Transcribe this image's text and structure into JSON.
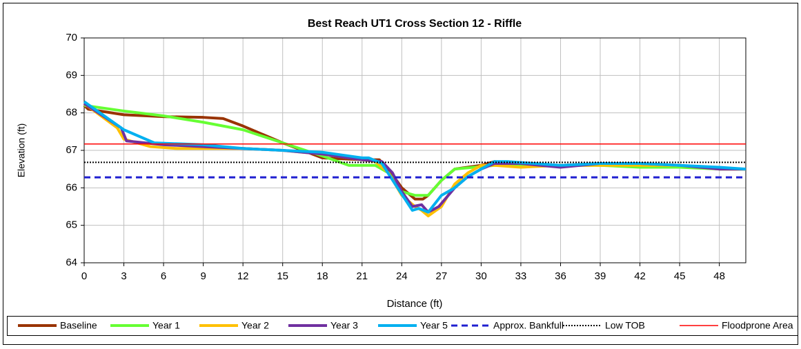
{
  "chart_data": {
    "type": "line",
    "title": "Best Reach UT1 Cross Section 12 - Riffle",
    "x_label": "Distance (ft)",
    "y_label": "Elevation (ft)",
    "xlim": [
      0,
      50
    ],
    "xticks": [
      0,
      3,
      6,
      9,
      12,
      15,
      18,
      21,
      24,
      27,
      30,
      33,
      36,
      39,
      42,
      45,
      48
    ],
    "ylim": [
      64,
      70
    ],
    "yticks": [
      64,
      65,
      66,
      67,
      68,
      69,
      70
    ],
    "grid": true,
    "legend": "bottom",
    "series": [
      {
        "name": "Baseline",
        "color": "#993300",
        "style": "solid",
        "x": [
          0,
          0.3,
          3,
          6,
          9,
          10.5,
          12,
          15,
          18,
          21,
          22.3,
          23,
          24,
          25,
          25.6,
          26,
          27,
          28,
          30,
          31,
          33,
          36,
          39,
          42,
          45,
          48,
          50
        ],
        "values": [
          68.2,
          68.1,
          67.95,
          67.9,
          67.88,
          67.85,
          67.65,
          67.2,
          66.8,
          66.75,
          66.75,
          66.5,
          66.0,
          65.7,
          65.7,
          65.8,
          66.2,
          66.5,
          66.6,
          66.7,
          66.65,
          66.6,
          66.65,
          66.65,
          66.6,
          66.5,
          66.5
        ]
      },
      {
        "name": "Year 1",
        "color": "#66ff33",
        "style": "solid",
        "x": [
          0,
          3,
          6,
          9,
          12,
          15,
          18,
          20,
          22,
          23,
          24,
          25,
          26,
          27,
          28,
          31,
          33,
          36,
          39,
          42,
          45,
          48,
          50
        ],
        "values": [
          68.2,
          68.05,
          67.92,
          67.75,
          67.55,
          67.2,
          66.85,
          66.6,
          66.6,
          66.4,
          65.9,
          65.8,
          65.8,
          66.2,
          66.5,
          66.6,
          66.6,
          66.6,
          66.6,
          66.55,
          66.55,
          66.5,
          66.5
        ]
      },
      {
        "name": "Year 2",
        "color": "#ffc000",
        "style": "solid",
        "x": [
          0,
          2.5,
          3,
          5,
          7,
          9,
          12,
          15,
          18,
          21,
          22,
          23,
          24,
          25,
          25.5,
          26,
          27,
          28,
          29,
          30,
          31,
          33,
          36,
          39,
          42,
          45,
          48,
          50
        ],
        "values": [
          68.25,
          67.6,
          67.3,
          67.1,
          67.05,
          67.05,
          67.05,
          67.0,
          66.9,
          66.75,
          66.7,
          66.4,
          65.8,
          65.5,
          65.4,
          65.25,
          65.5,
          66.1,
          66.4,
          66.6,
          66.6,
          66.55,
          66.6,
          66.6,
          66.6,
          66.6,
          66.5,
          66.5
        ]
      },
      {
        "name": "Year 3",
        "color": "#7030a0",
        "style": "solid",
        "x": [
          0,
          2.8,
          3.2,
          6,
          9,
          12,
          15,
          18,
          21,
          22.5,
          23.3,
          24,
          24.8,
          25.5,
          26,
          26.8,
          28,
          29,
          30,
          31,
          33,
          36,
          39,
          42,
          45,
          48,
          50
        ],
        "values": [
          68.25,
          67.6,
          67.25,
          67.15,
          67.1,
          67.05,
          67.0,
          66.9,
          66.75,
          66.7,
          66.4,
          65.9,
          65.5,
          65.55,
          65.35,
          65.5,
          66.0,
          66.3,
          66.5,
          66.65,
          66.65,
          66.55,
          66.65,
          66.65,
          66.6,
          66.5,
          66.5
        ]
      },
      {
        "name": "Year 5",
        "color": "#00b0f0",
        "style": "solid",
        "x": [
          0,
          3,
          5.3,
          9,
          12,
          15,
          18,
          21,
          21.5,
          22.5,
          23.5,
          24.8,
          25.3,
          26,
          27,
          28,
          29,
          31,
          32,
          36,
          39,
          42,
          45,
          48,
          50
        ],
        "values": [
          68.3,
          67.55,
          67.2,
          67.15,
          67.05,
          67.0,
          66.95,
          66.8,
          66.8,
          66.65,
          66.1,
          65.4,
          65.45,
          65.35,
          65.8,
          66.0,
          66.3,
          66.7,
          66.7,
          66.6,
          66.65,
          66.65,
          66.6,
          66.55,
          66.5
        ]
      },
      {
        "name": "Approx. Bankfull",
        "color": "#1f1fd0",
        "style": "dashed",
        "x": [
          0,
          50
        ],
        "values": [
          66.28,
          66.28
        ]
      },
      {
        "name": "Low TOB",
        "color": "#000000",
        "style": "dotted",
        "x": [
          0,
          50
        ],
        "values": [
          66.68,
          66.68
        ]
      },
      {
        "name": "Floodprone Area",
        "color": "#ff0000",
        "style": "thin",
        "x": [
          0,
          50
        ],
        "values": [
          67.17,
          67.17
        ]
      }
    ]
  }
}
